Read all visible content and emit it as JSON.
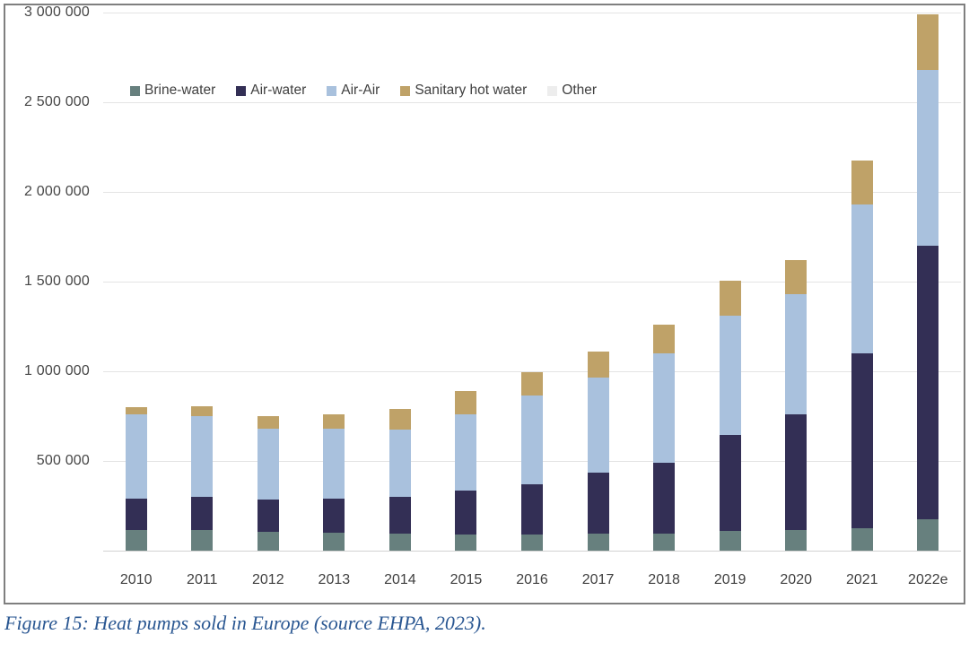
{
  "caption": "Figure 15: Heat pumps sold in Europe (source EHPA, 2023).",
  "colors": {
    "brine_water": "#67807E",
    "air_water": "#332F55",
    "air_air": "#A9C1DD",
    "sanitary_hot_water": "#BFA268",
    "other": "#EDEDED",
    "gridline": "#E4E4E4",
    "axis_line": "#D2D2D2",
    "caption_text": "#2A5792",
    "frame_border": "#7F7F7F"
  },
  "chart_data": {
    "type": "bar",
    "stacked": true,
    "title": "",
    "xlabel": "",
    "ylabel": "",
    "legend_position": "top-left-inside",
    "grid": "horizontal",
    "ylim": [
      0,
      3000000
    ],
    "categories": [
      "2010",
      "2011",
      "2012",
      "2013",
      "2014",
      "2015",
      "2016",
      "2017",
      "2018",
      "2019",
      "2020",
      "2021",
      "2022e"
    ],
    "series": [
      {
        "name": "Brine-water",
        "color": "#67807E",
        "values": [
          115000,
          115000,
          105000,
          100000,
          95000,
          90000,
          90000,
          95000,
          95000,
          110000,
          115000,
          125000,
          175000
        ]
      },
      {
        "name": "Air-water",
        "color": "#332F55",
        "values": [
          175000,
          185000,
          180000,
          190000,
          205000,
          245000,
          280000,
          340000,
          395000,
          535000,
          645000,
          975000,
          1525000
        ]
      },
      {
        "name": "Air-Air",
        "color": "#A9C1DD",
        "values": [
          470000,
          450000,
          395000,
          390000,
          375000,
          425000,
          495000,
          530000,
          610000,
          665000,
          670000,
          830000,
          980000
        ]
      },
      {
        "name": "Sanitary hot water",
        "color": "#BFA268",
        "values": [
          40000,
          55000,
          70000,
          80000,
          115000,
          130000,
          130000,
          145000,
          160000,
          195000,
          190000,
          245000,
          310000
        ]
      },
      {
        "name": "Other",
        "color": "#EDEDED",
        "values": [
          0,
          0,
          0,
          0,
          0,
          0,
          0,
          0,
          0,
          0,
          0,
          0,
          0
        ]
      }
    ],
    "totals": [
      800000,
      805000,
      750000,
      760000,
      790000,
      890000,
      995000,
      1110000,
      1260000,
      1505000,
      1620000,
      2175000,
      2990000
    ],
    "y_axis": {
      "ticks": [
        {
          "value": 500000,
          "label": "500 000"
        },
        {
          "value": 1000000,
          "label": "1 000 000"
        },
        {
          "value": 1500000,
          "label": "1 500 000"
        },
        {
          "value": 2000000,
          "label": "2 000 000"
        },
        {
          "value": 2500000,
          "label": "2 500 000"
        },
        {
          "value": 3000000,
          "label": "3 000 000"
        }
      ]
    }
  }
}
